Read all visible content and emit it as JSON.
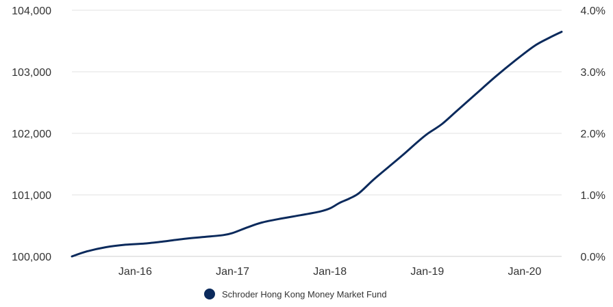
{
  "chart_data": {
    "type": "line",
    "title": "",
    "xlabel": "",
    "ylabel": "",
    "y_left_ticks": [
      "100,000",
      "101,000",
      "102,000",
      "103,000",
      "104,000"
    ],
    "y_left_values": [
      100000,
      101000,
      102000,
      103000,
      104000
    ],
    "y_right_ticks": [
      "0.0%",
      "1.0%",
      "2.0%",
      "3.0%",
      "4.0%"
    ],
    "x_ticks": [
      "Jan-16",
      "Jan-17",
      "Jan-18",
      "Jan-19",
      "Jan-20"
    ],
    "x_tick_years": [
      2016,
      2017,
      2018,
      2019,
      2020
    ],
    "ylim": [
      100000,
      104000
    ],
    "xlim": [
      2015.35,
      2020.38
    ],
    "grid": true,
    "legend_position": "bottom-center",
    "colors": {
      "series": "#0b2a5c",
      "grid": "#e0e0e0",
      "text": "#333333"
    },
    "series": [
      {
        "name": "Schroder Hong Kong Money Market Fund",
        "x": [
          2015.35,
          2015.5,
          2015.7,
          2015.9,
          2016.1,
          2016.3,
          2016.5,
          2016.7,
          2016.9,
          2017.0,
          2017.15,
          2017.3,
          2017.5,
          2017.7,
          2017.9,
          2018.0,
          2018.1,
          2018.2,
          2018.3,
          2018.45,
          2018.6,
          2018.75,
          2018.9,
          2019.0,
          2019.15,
          2019.3,
          2019.5,
          2019.7,
          2019.9,
          2020.1,
          2020.25,
          2020.38
        ],
        "y": [
          100000,
          100080,
          100150,
          100190,
          100210,
          100245,
          100285,
          100315,
          100345,
          100380,
          100470,
          100550,
          100615,
          100670,
          100730,
          100780,
          100870,
          100940,
          101030,
          101250,
          101450,
          101650,
          101860,
          101990,
          102150,
          102360,
          102640,
          102920,
          103180,
          103420,
          103550,
          103650
        ]
      }
    ]
  }
}
